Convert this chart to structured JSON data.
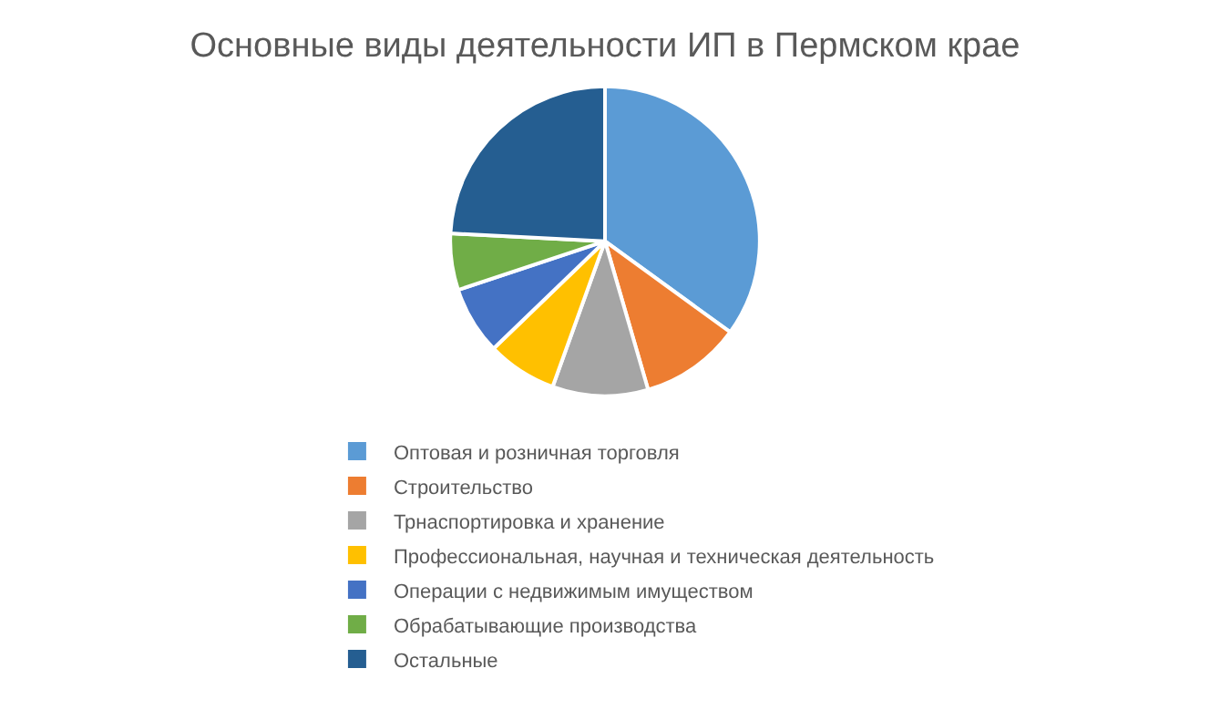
{
  "chart_data": {
    "type": "pie",
    "title": "Основные виды деятельности ИП в Пермском крае",
    "categories": [
      "Оптовая и розничная торговля",
      "Строительство",
      "Трнаспортировка и хранение",
      "Профессиональная, научная и техническая деятельность",
      "Операции с недвижимым имуществом",
      "Обрабатывающие производства",
      "Остальные"
    ],
    "values": [
      35,
      10.5,
      10,
      7.3,
      7.1,
      5.9,
      24.2
    ],
    "colors": [
      "#5b9bd5",
      "#ed7d31",
      "#a5a5a5",
      "#ffc000",
      "#4472c4",
      "#70ad47",
      "#255e91"
    ],
    "legend": "bottom"
  }
}
